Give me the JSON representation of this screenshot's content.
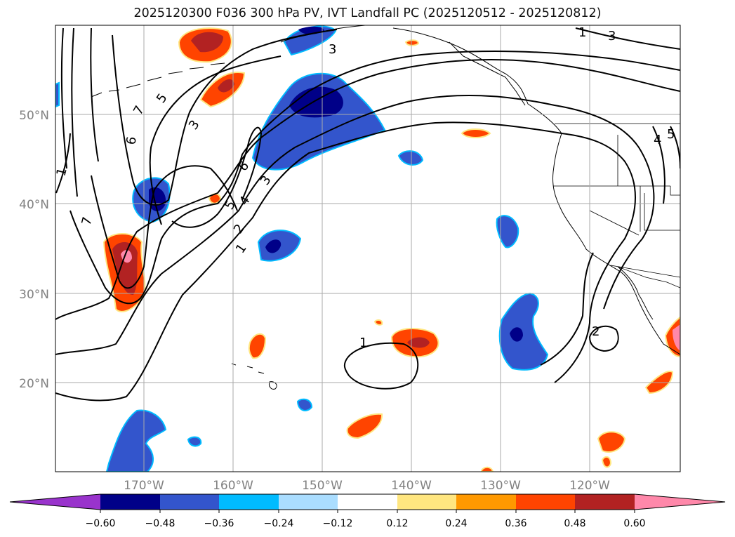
{
  "title": "2025120300 F036 300 hPa PV, IVT Landfall PC (2025120512 - 2025120812)",
  "lat_labels": [
    "50°N",
    "40°N",
    "30°N",
    "20°N"
  ],
  "lon_labels": [
    "170°W",
    "160°W",
    "150°W",
    "140°W",
    "130°W",
    "120°W"
  ],
  "contour_labels": [
    "1",
    "1",
    "1",
    "2",
    "2",
    "3",
    "3",
    "3",
    "3",
    "4",
    "4",
    "5",
    "5",
    "5",
    "6",
    "6",
    "7",
    "7",
    "1"
  ],
  "colorbar": {
    "ticks": [
      "−0.60",
      "−0.48",
      "−0.36",
      "−0.24",
      "−0.12",
      "0.12",
      "0.24",
      "0.36",
      "0.48",
      "0.60"
    ],
    "colors": [
      "#9933cc",
      "#000088",
      "#3355cc",
      "#00bbff",
      "#aaddff",
      "#ffffff",
      "#ffe680",
      "#ff9900",
      "#ff4400",
      "#b22222",
      "#ff88aa"
    ]
  },
  "colors": {
    "neg_strong": "#000088",
    "neg_mid": "#3355cc",
    "neg_light": "#00bbff",
    "neg_pale": "#aaddff",
    "pos_pale": "#ffe680",
    "pos_light": "#ff9900",
    "pos_mid": "#ff4400",
    "pos_strong": "#b22222",
    "pos_max": "#ff88aa"
  }
}
